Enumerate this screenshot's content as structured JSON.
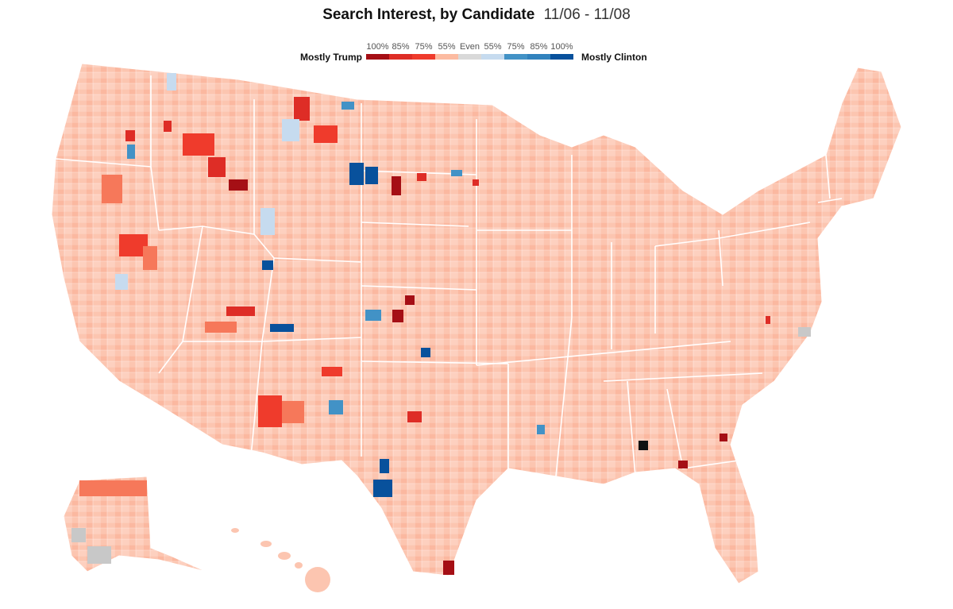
{
  "header": {
    "title_bold": "Search Interest, by Candidate",
    "title_dates": "11/06 - 11/08"
  },
  "legend": {
    "left_label": "Mostly Trump",
    "right_label": "Mostly Clinton",
    "bins": [
      {
        "label": "100%",
        "color": "#a50f15"
      },
      {
        "label": "85%",
        "color": "#de2d26"
      },
      {
        "label": "75%",
        "color": "#ef3b2c"
      },
      {
        "label": "55%",
        "color": "#fcbba1"
      },
      {
        "label": "Even",
        "color": "#d9d9d9"
      },
      {
        "label": "55%",
        "color": "#c6dbef"
      },
      {
        "label": "75%",
        "color": "#4292c6"
      },
      {
        "label": "85%",
        "color": "#3182bd"
      },
      {
        "label": "100%",
        "color": "#08519c"
      }
    ]
  },
  "colors": {
    "base_county": "#fcc5b0",
    "base_alt": "#f9b39a",
    "state_border": "#ffffff",
    "no_data": "#c8c8c8",
    "darkest": "#111111"
  }
}
